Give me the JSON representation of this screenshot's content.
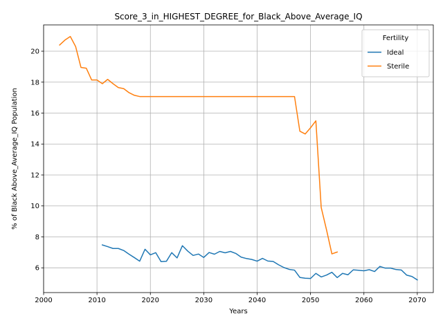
{
  "chart_data": {
    "type": "line",
    "title": "Score_3_in_HIGHEST_DEGREE_for_Black_Above_Average_IQ",
    "xlabel": "Years",
    "ylabel": "% of Black Above_Average_IQ Population",
    "xlim": [
      2000,
      2073
    ],
    "ylim": [
      4.4,
      21.7
    ],
    "xticks": [
      2000,
      2010,
      2020,
      2030,
      2040,
      2050,
      2060,
      2070
    ],
    "yticks": [
      6,
      8,
      10,
      12,
      14,
      16,
      18,
      20
    ],
    "grid": true,
    "legend": {
      "title": "Fertility",
      "placement": "top-right"
    },
    "series": [
      {
        "name": "Ideal",
        "color": "#1f77b4",
        "x": [
          2011,
          2012,
          2013,
          2014,
          2015,
          2016,
          2017,
          2018,
          2019,
          2020,
          2021,
          2022,
          2023,
          2024,
          2025,
          2026,
          2027,
          2028,
          2029,
          2030,
          2031,
          2032,
          2033,
          2034,
          2035,
          2036,
          2037,
          2038,
          2039,
          2040,
          2041,
          2042,
          2043,
          2044,
          2045,
          2046,
          2047,
          2048,
          2049,
          2050,
          2051,
          2052,
          2053,
          2054,
          2055,
          2056,
          2057,
          2058,
          2059,
          2060,
          2061,
          2062,
          2063,
          2064,
          2065,
          2066,
          2067,
          2068,
          2069,
          2070
        ],
        "values": [
          7.48,
          7.37,
          7.25,
          7.25,
          7.12,
          6.88,
          6.66,
          6.43,
          7.2,
          6.84,
          6.98,
          6.4,
          6.42,
          6.98,
          6.64,
          7.43,
          7.08,
          6.8,
          6.89,
          6.67,
          6.99,
          6.88,
          7.06,
          6.97,
          7.06,
          6.93,
          6.69,
          6.6,
          6.54,
          6.43,
          6.61,
          6.44,
          6.41,
          6.2,
          6.02,
          5.9,
          5.85,
          5.38,
          5.33,
          5.31,
          5.64,
          5.41,
          5.53,
          5.71,
          5.37,
          5.64,
          5.55,
          5.87,
          5.84,
          5.81,
          5.88,
          5.76,
          6.09,
          5.98,
          5.98,
          5.89,
          5.86,
          5.53,
          5.44,
          5.22
        ]
      },
      {
        "name": "Sterile",
        "color": "#ff7f0e",
        "x": [
          2003,
          2004,
          2005,
          2006,
          2007,
          2008,
          2009,
          2010,
          2011,
          2012,
          2013,
          2014,
          2015,
          2016,
          2017,
          2018,
          2019,
          2020,
          2025,
          2030,
          2035,
          2040,
          2045,
          2047,
          2048,
          2049,
          2050,
          2051,
          2052,
          2053,
          2054,
          2055
        ],
        "values": [
          20.4,
          20.72,
          20.95,
          20.3,
          18.95,
          18.9,
          18.14,
          18.14,
          17.9,
          18.18,
          17.9,
          17.65,
          17.58,
          17.32,
          17.15,
          17.07,
          17.07,
          17.07,
          17.07,
          17.07,
          17.07,
          17.07,
          17.07,
          17.07,
          14.83,
          14.65,
          15.05,
          15.5,
          9.9,
          8.45,
          6.9,
          7.02
        ]
      }
    ]
  }
}
